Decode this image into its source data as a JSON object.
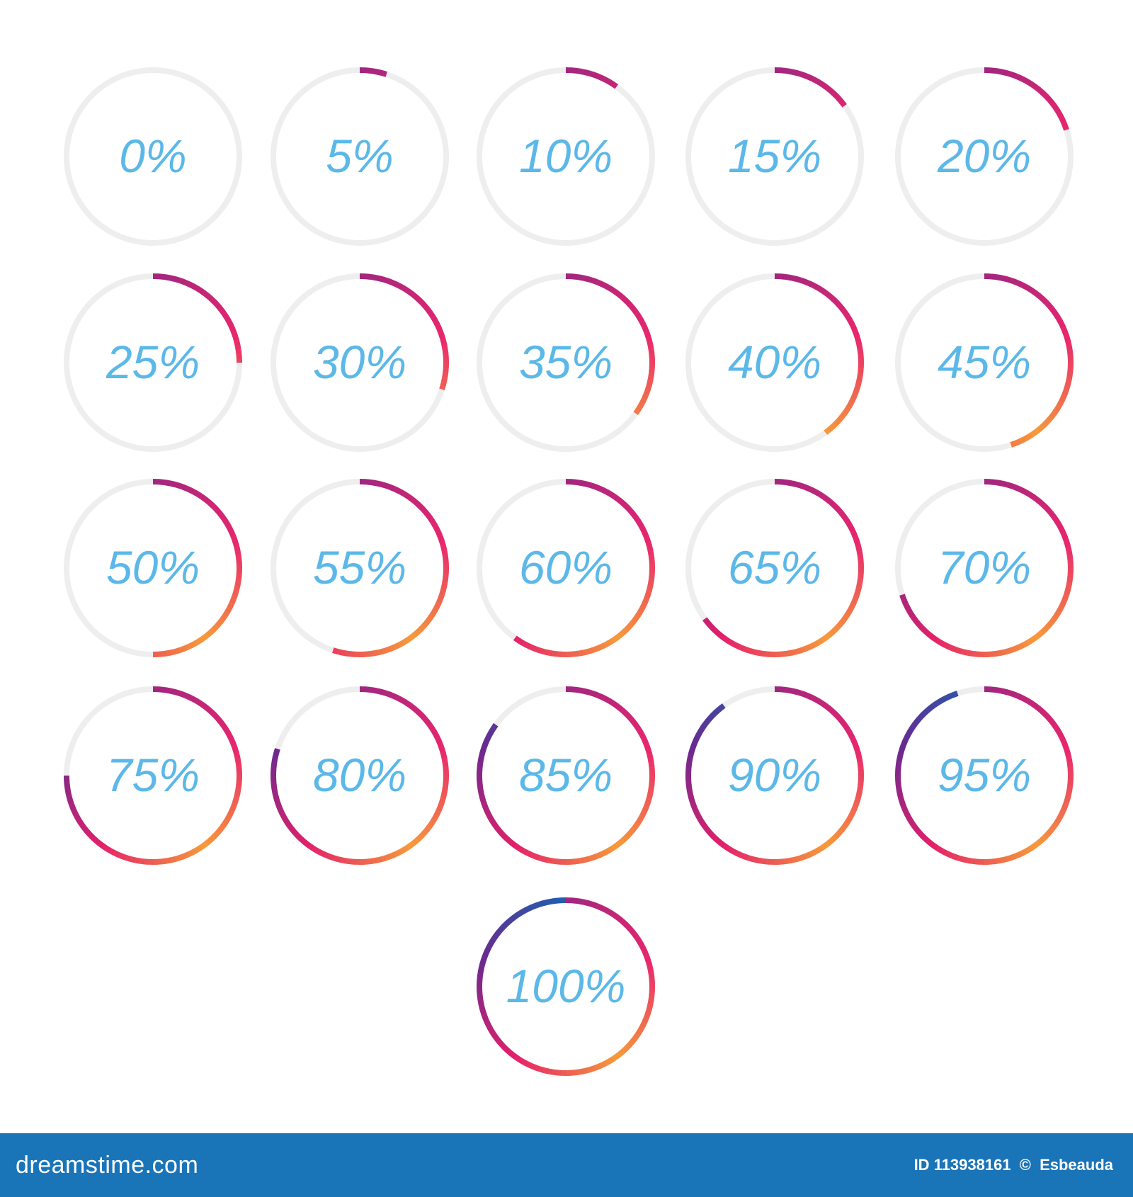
{
  "progress_rings": [
    {
      "label": "0%",
      "value": 0
    },
    {
      "label": "5%",
      "value": 5
    },
    {
      "label": "10%",
      "value": 10
    },
    {
      "label": "15%",
      "value": 15
    },
    {
      "label": "20%",
      "value": 20
    },
    {
      "label": "25%",
      "value": 25
    },
    {
      "label": "30%",
      "value": 30
    },
    {
      "label": "35%",
      "value": 35
    },
    {
      "label": "40%",
      "value": 40
    },
    {
      "label": "45%",
      "value": 45
    },
    {
      "label": "50%",
      "value": 50
    },
    {
      "label": "55%",
      "value": 55
    },
    {
      "label": "60%",
      "value": 60
    },
    {
      "label": "65%",
      "value": 65
    },
    {
      "label": "70%",
      "value": 70
    },
    {
      "label": "75%",
      "value": 75
    },
    {
      "label": "80%",
      "value": 80
    },
    {
      "label": "85%",
      "value": 85
    },
    {
      "label": "90%",
      "value": 90
    },
    {
      "label": "95%",
      "value": 95
    },
    {
      "label": "100%",
      "value": 100
    }
  ],
  "colors": {
    "track": "#eeeeee",
    "label": "#5bb8e8",
    "gradient_stops": [
      "#a0267f",
      "#e8266e",
      "#f79a3a",
      "#e4206a",
      "#6a2a8f",
      "#1f5fb0"
    ],
    "footer_bg": "#1a74b8"
  },
  "footer": {
    "brand": "dreamstime.com",
    "image_id": "ID 113938161",
    "copyright_symbol": "©",
    "author": "Esbeauda"
  }
}
